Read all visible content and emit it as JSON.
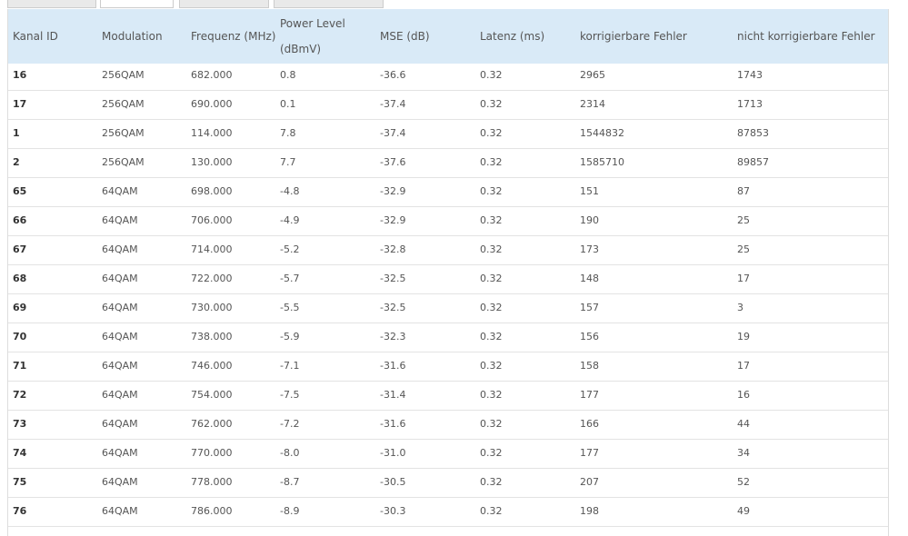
{
  "table": {
    "headers": [
      "Kanal ID",
      "Modulation",
      "Frequenz (MHz)",
      "Power Level (dBmV)",
      "MSE (dB)",
      "Latenz (ms)",
      "korrigierbare Fehler",
      "nicht korrigierbare Fehler"
    ],
    "rows": [
      [
        "16",
        "256QAM",
        "682.000",
        "0.8",
        "-36.6",
        "0.32",
        "2965",
        "1743"
      ],
      [
        "17",
        "256QAM",
        "690.000",
        "0.1",
        "-37.4",
        "0.32",
        "2314",
        "1713"
      ],
      [
        "1",
        "256QAM",
        "114.000",
        "7.8",
        "-37.4",
        "0.32",
        "1544832",
        "87853"
      ],
      [
        "2",
        "256QAM",
        "130.000",
        "7.7",
        "-37.6",
        "0.32",
        "1585710",
        "89857"
      ],
      [
        "65",
        "64QAM",
        "698.000",
        "-4.8",
        "-32.9",
        "0.32",
        "151",
        "87"
      ],
      [
        "66",
        "64QAM",
        "706.000",
        "-4.9",
        "-32.9",
        "0.32",
        "190",
        "25"
      ],
      [
        "67",
        "64QAM",
        "714.000",
        "-5.2",
        "-32.8",
        "0.32",
        "173",
        "25"
      ],
      [
        "68",
        "64QAM",
        "722.000",
        "-5.7",
        "-32.5",
        "0.32",
        "148",
        "17"
      ],
      [
        "69",
        "64QAM",
        "730.000",
        "-5.5",
        "-32.5",
        "0.32",
        "157",
        "3"
      ],
      [
        "70",
        "64QAM",
        "738.000",
        "-5.9",
        "-32.3",
        "0.32",
        "156",
        "19"
      ],
      [
        "71",
        "64QAM",
        "746.000",
        "-7.1",
        "-31.6",
        "0.32",
        "158",
        "17"
      ],
      [
        "72",
        "64QAM",
        "754.000",
        "-7.5",
        "-31.4",
        "0.32",
        "177",
        "16"
      ],
      [
        "73",
        "64QAM",
        "762.000",
        "-7.2",
        "-31.6",
        "0.32",
        "166",
        "44"
      ],
      [
        "74",
        "64QAM",
        "770.000",
        "-8.0",
        "-31.0",
        "0.32",
        "177",
        "34"
      ],
      [
        "75",
        "64QAM",
        "778.000",
        "-8.7",
        "-30.5",
        "0.32",
        "207",
        "52"
      ],
      [
        "76",
        "64QAM",
        "786.000",
        "-8.9",
        "-30.3",
        "0.32",
        "198",
        "49"
      ]
    ]
  }
}
